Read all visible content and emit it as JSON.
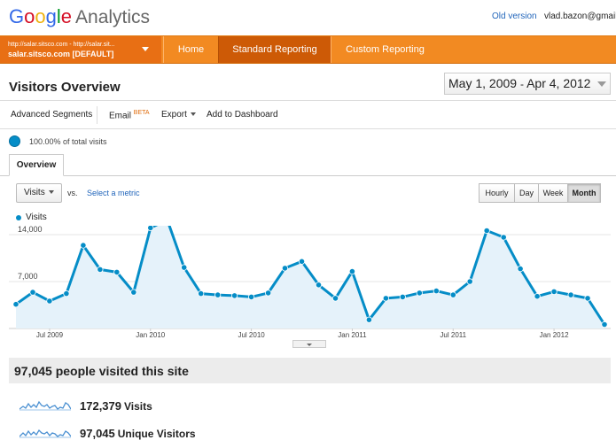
{
  "header": {
    "logo_google": "Google",
    "logo_analytics": "Analytics",
    "old_version": "Old version",
    "user_email": "vlad.bazon@gmail.com"
  },
  "nav": {
    "account_urls": "http://salar.sitsco.com - http://salar.sit...",
    "account_name": "salar.sitsco.com [DEFAULT]",
    "home": "Home",
    "standard_reporting": "Standard Reporting",
    "custom_reporting": "Custom Reporting"
  },
  "page": {
    "title": "Visitors Overview",
    "date_start": "May 1, 2009",
    "date_sep": "-",
    "date_end": "Apr 4, 2012"
  },
  "toolbar": {
    "advanced_segments": "Advanced Segments",
    "email": "Email",
    "email_badge": "BETA",
    "export": "Export",
    "add_to_dashboard": "Add to Dashboard"
  },
  "segment": {
    "text": "100.00% of total visits"
  },
  "tabs": {
    "overview": "Overview"
  },
  "chart_controls": {
    "metric": "Visits",
    "vs": "vs.",
    "select_metric": "Select a metric",
    "periods": [
      "Hourly",
      "Day",
      "Week",
      "Month"
    ],
    "active_period": "Month",
    "legend": "Visits"
  },
  "chart_data": {
    "type": "area",
    "series": [
      {
        "name": "Visits",
        "color": "#058dc7",
        "values": [
          3600,
          5400,
          4100,
          5200,
          12400,
          8800,
          8400,
          5400,
          15000,
          16200,
          9100,
          5200,
          5000,
          4900,
          4700,
          5300,
          9000,
          10000,
          6500,
          4500,
          8500,
          1300,
          4500,
          4700,
          5300,
          5600,
          5000,
          7000,
          14600,
          13600,
          8900,
          4800,
          5500,
          5000,
          4500,
          600
        ]
      }
    ],
    "x_ticks": [
      "Jul 2009",
      "Jan 2010",
      "Jul 2010",
      "Jan 2011",
      "Jul 2011",
      "Jan 2012"
    ],
    "y_ticks": [
      "14,000",
      "7,000"
    ],
    "ylim": [
      0,
      14000
    ],
    "grid": true
  },
  "summary": {
    "headline": "97,045 people visited this site",
    "visits_value": "172,379",
    "visits_label": "Visits",
    "unique_value": "97,045",
    "unique_label": "Unique Visitors"
  }
}
